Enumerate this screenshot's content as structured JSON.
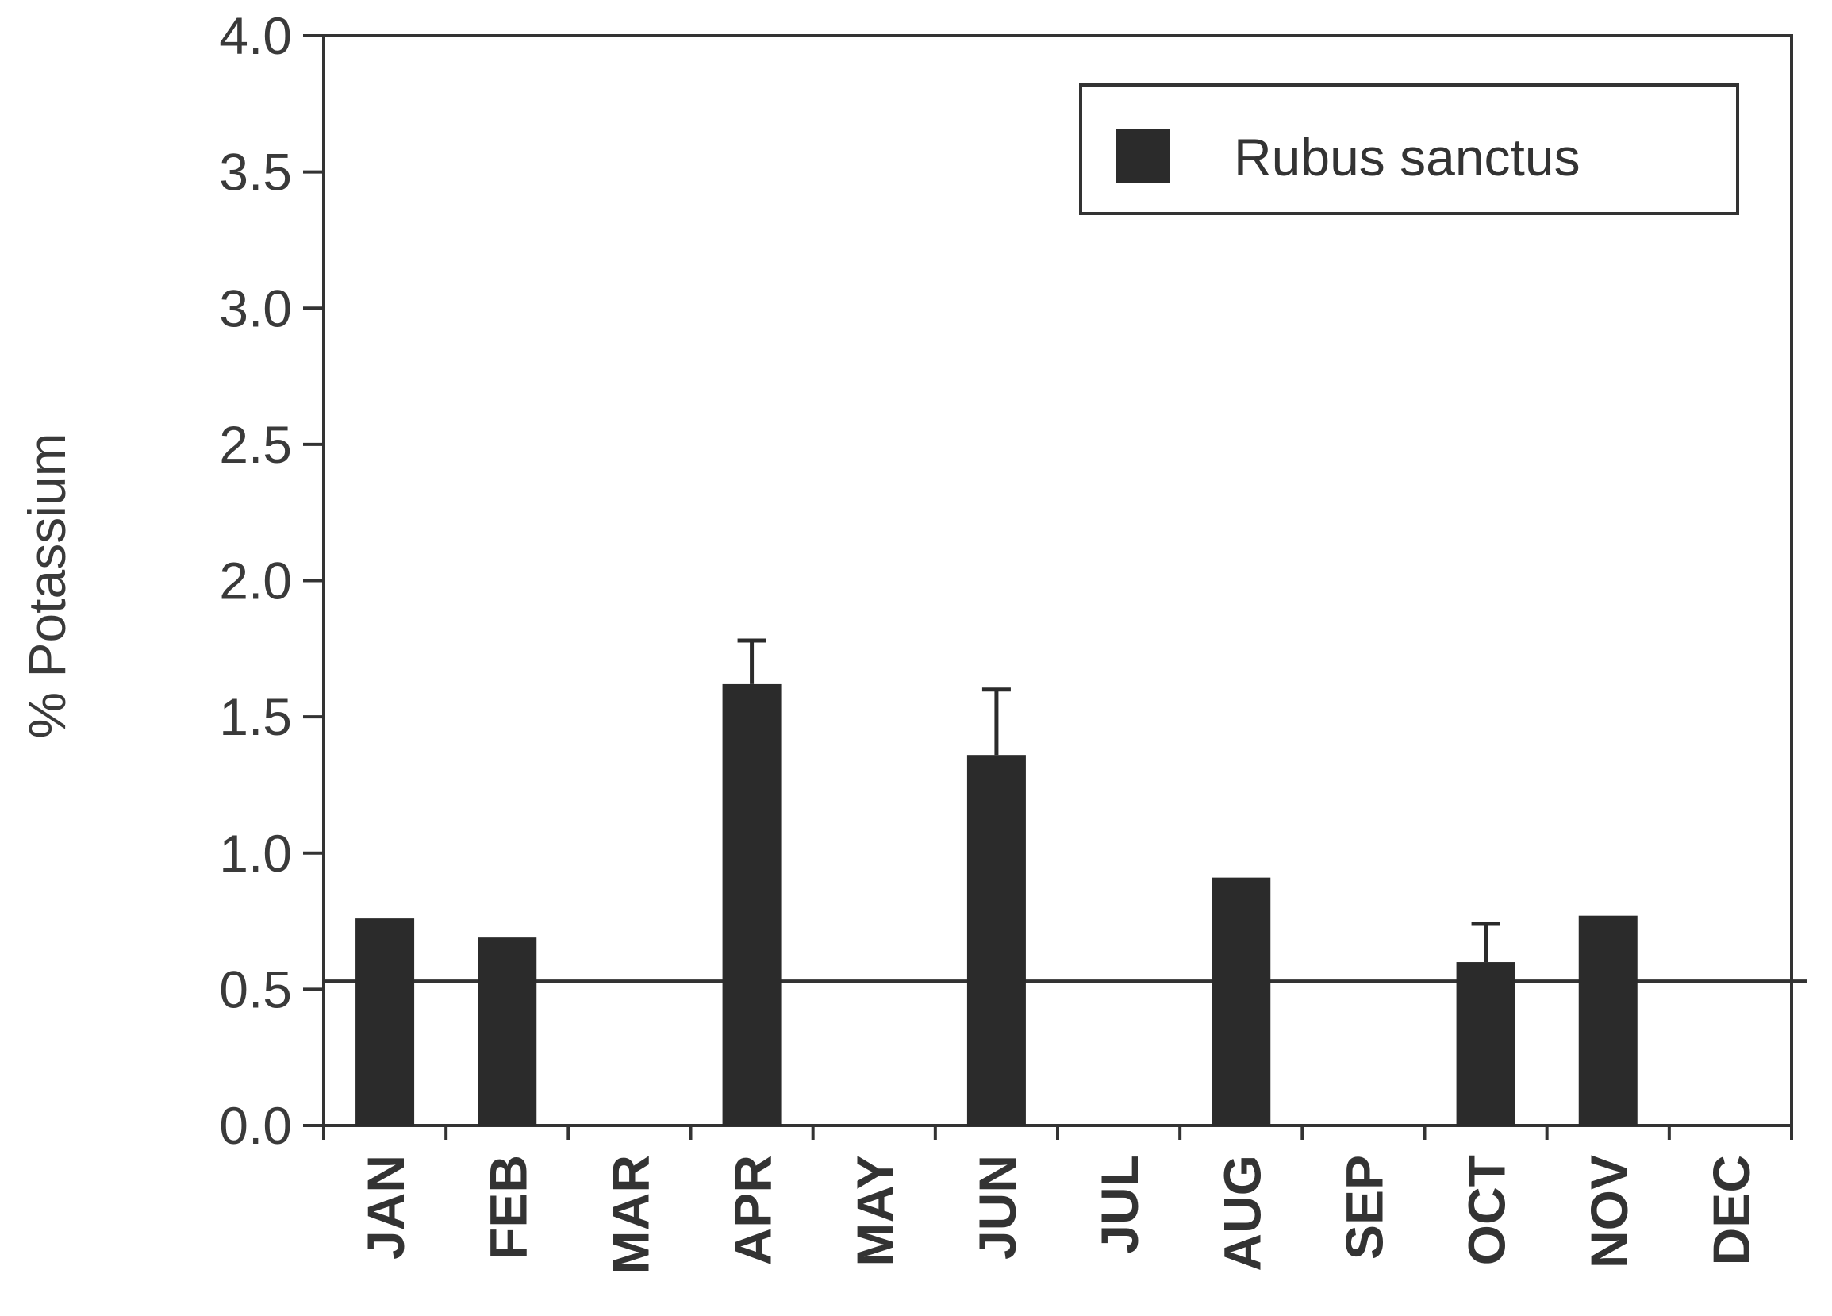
{
  "chart_data": {
    "type": "bar",
    "categories": [
      "JAN",
      "FEB",
      "MAR",
      "APR",
      "MAY",
      "JUN",
      "JUL",
      "AUG",
      "SEP",
      "OCT",
      "NOV",
      "DEC"
    ],
    "series": [
      {
        "name": "Rubus sanctus",
        "values": [
          0.76,
          0.69,
          null,
          1.62,
          null,
          1.36,
          null,
          0.91,
          null,
          0.6,
          0.77,
          null
        ],
        "error_upper": [
          null,
          null,
          null,
          1.78,
          null,
          1.6,
          null,
          null,
          null,
          0.74,
          null,
          null
        ]
      }
    ],
    "reference_line": 0.53,
    "ylabel": "% Potassium",
    "xlabel": "",
    "ylim": [
      0,
      4.0
    ],
    "yticks": [
      "0.0",
      "0.5",
      "1.0",
      "1.5",
      "2.0",
      "2.5",
      "3.0",
      "3.5",
      "4.0"
    ],
    "legend_position": "top-right",
    "colors": {
      "bar": "#2b2b2b",
      "axis": "#333333",
      "text": "#3a3a3a"
    }
  }
}
